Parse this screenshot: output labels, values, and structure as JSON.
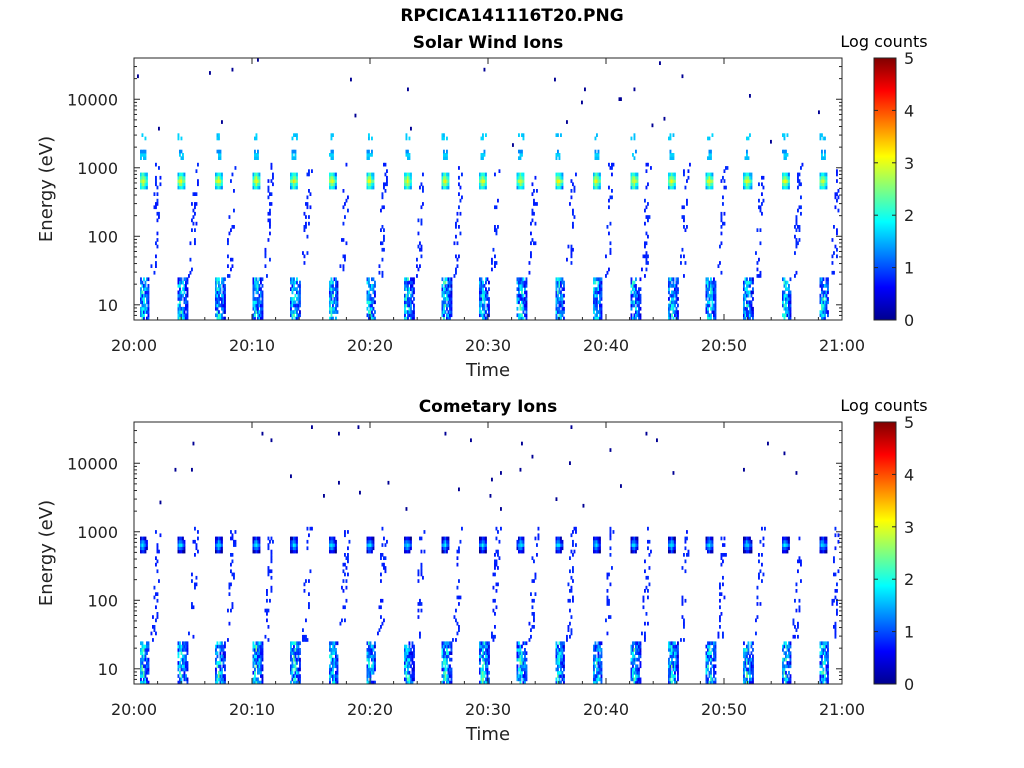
{
  "figure": {
    "title": "RPCICA141116T20.PNG"
  },
  "chart_data": [
    {
      "type": "heatmap",
      "title": "Solar Wind Ions",
      "xlabel": "Time",
      "ylabel": "Energy (eV)",
      "x_ticks": [
        "20:00",
        "20:10",
        "20:20",
        "20:30",
        "20:40",
        "20:50",
        "21:00"
      ],
      "xlim": [
        "20:00",
        "21:00"
      ],
      "y_scale": "log",
      "ylim": [
        6,
        40000
      ],
      "y_ticks": [
        10,
        100,
        1000,
        10000
      ],
      "y_tick_labels": [
        "10",
        "100",
        "1000",
        "10000"
      ],
      "colorbar": {
        "label": "Log counts",
        "min": 0,
        "max": 5,
        "ticks": [
          "0",
          "1",
          "2",
          "3",
          "4",
          "5"
        ],
        "colormap": "jet"
      },
      "pattern": {
        "sweep_period_min": 3.2,
        "sweep_start_min": 0.4,
        "peak_energy_eV": 650,
        "peak_log_counts": 3.0,
        "secondary_energy_eV": 1500,
        "secondary_log_counts": 1.8,
        "low_energy_log_counts": 2.3,
        "low_energy_max_eV": 25
      },
      "grid": false
    },
    {
      "type": "heatmap",
      "title": "Cometary Ions",
      "xlabel": "Time",
      "ylabel": "Energy (eV)",
      "x_ticks": [
        "20:00",
        "20:10",
        "20:20",
        "20:30",
        "20:40",
        "20:50",
        "21:00"
      ],
      "xlim": [
        "20:00",
        "21:00"
      ],
      "y_scale": "log",
      "ylim": [
        6,
        40000
      ],
      "y_ticks": [
        10,
        100,
        1000,
        10000
      ],
      "y_tick_labels": [
        "10",
        "100",
        "1000",
        "10000"
      ],
      "colorbar": {
        "label": "Log counts",
        "min": 0,
        "max": 5,
        "ticks": [
          "0",
          "1",
          "2",
          "3",
          "4",
          "5"
        ],
        "colormap": "jet"
      },
      "pattern": {
        "sweep_period_min": 3.2,
        "sweep_start_min": 0.4,
        "peak_energy_eV": 650,
        "peak_log_counts": 1.7,
        "secondary_energy_eV": 0,
        "secondary_log_counts": 0,
        "low_energy_log_counts": 2.4,
        "low_energy_max_eV": 25
      },
      "grid": false
    }
  ]
}
